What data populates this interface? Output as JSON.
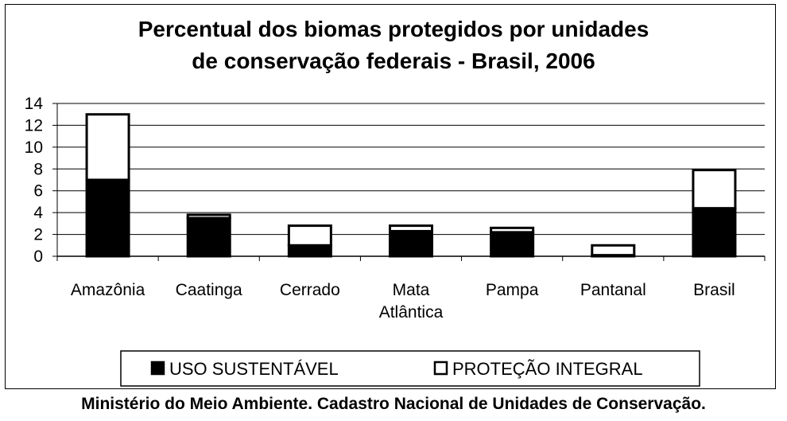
{
  "chart_data": {
    "type": "bar",
    "stacked": true,
    "title_lines": [
      "Percentual dos biomas protegidos por unidades",
      "de conservação federais - Brasil, 2006"
    ],
    "categories": [
      [
        "Amazônia"
      ],
      [
        "Caatinga"
      ],
      [
        "Cerrado"
      ],
      [
        "Mata",
        "Atlântica"
      ],
      [
        "Pampa"
      ],
      [
        "Pantanal"
      ],
      [
        "Brasil"
      ]
    ],
    "series": [
      {
        "name": "USO SUSTENTÁVEL",
        "color": "#000000",
        "values": [
          7.0,
          3.5,
          1.0,
          2.3,
          2.2,
          0.1,
          4.4
        ]
      },
      {
        "name": "PROTEÇÃO INTEGRAL",
        "color": "#ffffff",
        "values": [
          6.0,
          0.3,
          1.8,
          0.5,
          0.4,
          0.9,
          3.5
        ]
      }
    ],
    "yticks": [
      0,
      2,
      4,
      6,
      8,
      10,
      12,
      14
    ],
    "ylim": [
      0,
      14
    ],
    "grid": true,
    "legend_position": "bottom"
  },
  "source": "Ministério do Meio Ambiente. Cadastro Nacional de Unidades de Conservação."
}
